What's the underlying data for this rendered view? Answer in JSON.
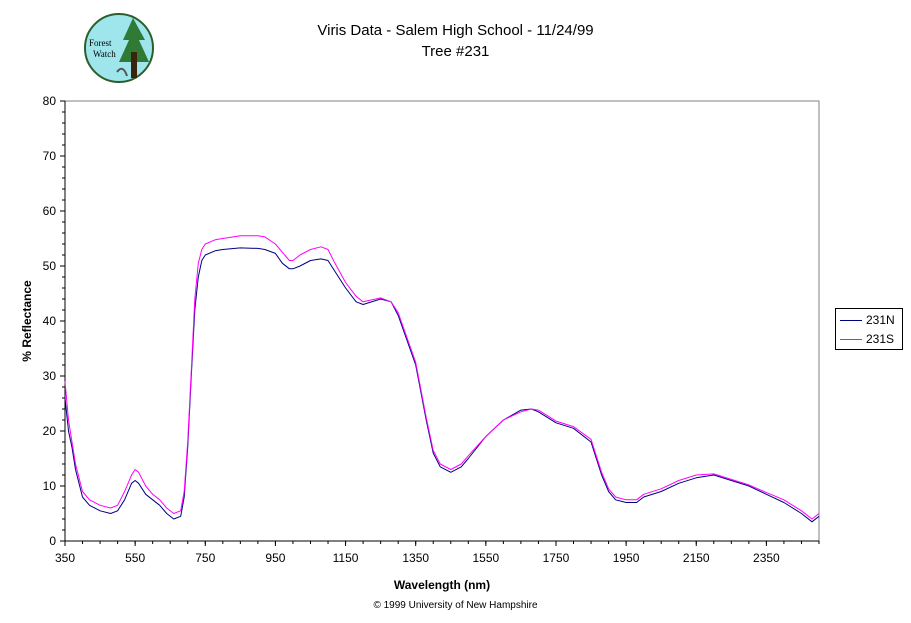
{
  "chart_data": {
    "type": "line",
    "title": "Viris Data - Salem High School - 11/24/99",
    "subtitle": "Tree #231",
    "xlabel": "Wavelength (nm)",
    "ylabel": "% Reflectance",
    "xlim": [
      350,
      2500
    ],
    "ylim": [
      0,
      80
    ],
    "xticks": [
      "350",
      "550",
      "750",
      "950",
      "1150",
      "1350",
      "1550",
      "1750",
      "1950",
      "2150",
      "2350"
    ],
    "yticks": [
      "0",
      "10",
      "20",
      "30",
      "40",
      "50",
      "60",
      "70",
      "80"
    ],
    "grid": false,
    "legend_position": "right",
    "series": [
      {
        "name": "231N",
        "color": "#000080",
        "x": [
          350,
          360,
          370,
          380,
          400,
          420,
          450,
          480,
          500,
          520,
          540,
          550,
          560,
          580,
          600,
          620,
          640,
          660,
          680,
          690,
          700,
          710,
          720,
          730,
          740,
          750,
          780,
          800,
          850,
          900,
          920,
          950,
          970,
          990,
          1000,
          1020,
          1050,
          1080,
          1100,
          1120,
          1150,
          1180,
          1200,
          1250,
          1280,
          1300,
          1350,
          1380,
          1400,
          1420,
          1450,
          1480,
          1500,
          1550,
          1600,
          1650,
          1680,
          1700,
          1750,
          1800,
          1850,
          1880,
          1900,
          1920,
          1950,
          1980,
          2000,
          2050,
          2100,
          2150,
          2200,
          2250,
          2300,
          2350,
          2400,
          2450,
          2480,
          2500
        ],
        "values": [
          26,
          20,
          17,
          13,
          8,
          6.5,
          5.5,
          5,
          5.5,
          7.5,
          10.5,
          11,
          10.5,
          8.5,
          7.5,
          6.5,
          5,
          4,
          4.5,
          8,
          17,
          30,
          42,
          48,
          51,
          52,
          52.8,
          53,
          53.3,
          53.2,
          53,
          52.3,
          50.5,
          49.5,
          49.5,
          50,
          51,
          51.3,
          51,
          49,
          46,
          43.5,
          43,
          44,
          43.5,
          41,
          32,
          22,
          16,
          13.5,
          12.5,
          13.5,
          15,
          19,
          22,
          23.8,
          24,
          23.5,
          21.5,
          20.5,
          18,
          12,
          9,
          7.5,
          7,
          7,
          8,
          9,
          10.5,
          11.5,
          12,
          11,
          10,
          8.5,
          7,
          5,
          3.5,
          4.5
        ]
      },
      {
        "name": "231S",
        "color": "#ff00ff",
        "x": [
          350,
          360,
          370,
          380,
          400,
          420,
          450,
          480,
          500,
          520,
          540,
          550,
          560,
          580,
          600,
          620,
          640,
          660,
          680,
          690,
          700,
          710,
          720,
          730,
          740,
          750,
          780,
          800,
          850,
          900,
          920,
          950,
          970,
          990,
          1000,
          1020,
          1050,
          1080,
          1100,
          1120,
          1150,
          1180,
          1200,
          1250,
          1280,
          1300,
          1350,
          1380,
          1400,
          1420,
          1450,
          1480,
          1500,
          1550,
          1600,
          1650,
          1680,
          1700,
          1750,
          1800,
          1850,
          1880,
          1900,
          1920,
          1950,
          1980,
          2000,
          2050,
          2100,
          2150,
          2200,
          2250,
          2300,
          2350,
          2400,
          2450,
          2480,
          2500
        ],
        "values": [
          29,
          22,
          18,
          14,
          9,
          7.5,
          6.5,
          6,
          6.5,
          9,
          12,
          13,
          12.5,
          10,
          8.5,
          7.5,
          6,
          5,
          5.5,
          9,
          18,
          31,
          44,
          50.5,
          53,
          54,
          54.8,
          55,
          55.5,
          55.5,
          55.3,
          54,
          52.5,
          51,
          51,
          52,
          53,
          53.5,
          53,
          50.5,
          47,
          44.5,
          43.5,
          44.2,
          43.5,
          41.5,
          32.5,
          22.5,
          16.5,
          14,
          13,
          14,
          15.5,
          19,
          22,
          23.5,
          24,
          23.8,
          21.8,
          20.8,
          18.5,
          12.5,
          9.5,
          8,
          7.5,
          7.5,
          8.5,
          9.5,
          11,
          12,
          12.2,
          11.2,
          10.2,
          8.8,
          7.5,
          5.5,
          4,
          5
        ]
      }
    ]
  },
  "copyright": "© 1999 University of New Hampshire",
  "logo": {
    "text_line1": "Forest",
    "text_line2": "Watch"
  }
}
